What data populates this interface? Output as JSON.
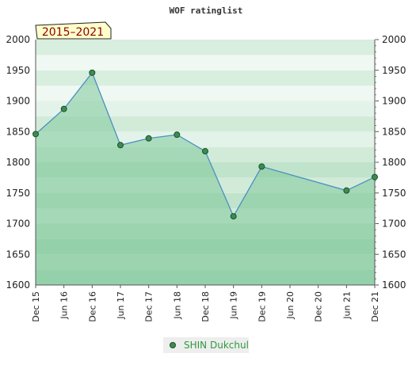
{
  "chart_data": {
    "type": "area",
    "title": "WOF ratinglist",
    "period_label": "2015–2021",
    "xlabel": "",
    "ylabel": "",
    "ylim": [
      1600,
      2000
    ],
    "y_ticks": [
      1600,
      1650,
      1700,
      1750,
      1800,
      1850,
      1900,
      1950,
      2000
    ],
    "x_tick_labels": [
      "Dec 15",
      "Jun 16",
      "Dec 16",
      "Jun 17",
      "Dec 17",
      "Jun 18",
      "Dec 18",
      "Jun 19",
      "Dec 19",
      "Jun 20",
      "Dec 20",
      "Jun 21",
      "Dec 21"
    ],
    "grid": true,
    "legend_position": "bottom-center",
    "series": [
      {
        "name": "SHIN Dukchul",
        "x": [
          "Dec 15",
          "Jun 16",
          "Dec 16",
          "Jun 17",
          "Dec 17",
          "Jun 18",
          "Dec 18",
          "Jun 19",
          "Dec 19",
          "Jun 21",
          "Dec 21"
        ],
        "values": [
          1846,
          1887,
          1946,
          1828,
          1839,
          1845,
          1818,
          1712,
          1793,
          1754,
          1776
        ]
      }
    ],
    "colors": {
      "line": "#4a90c2",
      "area": "#7ec89a",
      "marker": "#3c8c52",
      "legend_text": "#2e9a3e",
      "period_text": "#8b0000",
      "period_bg": "#ffffcc"
    }
  }
}
